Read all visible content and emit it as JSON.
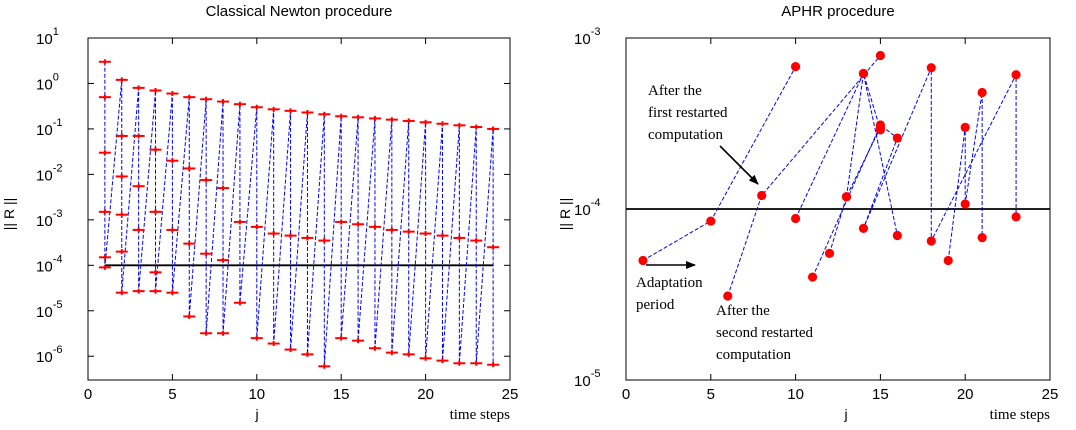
{
  "colors": {
    "marker": "#ff0000",
    "line": "#0000ff",
    "threshold": "#000000"
  },
  "chart_data": [
    {
      "type": "line",
      "title": "Classical Newton procedure",
      "xlabel": "j",
      "xlabel_right": "time steps",
      "ylabel": "|| R ||",
      "xlim": [
        0,
        25
      ],
      "ylim": [
        3e-07,
        10
      ],
      "yscale": "log",
      "xticks": [
        0,
        5,
        10,
        15,
        20,
        25
      ],
      "yticks": [
        {
          "base": "10",
          "exp": "1"
        },
        {
          "base": "10",
          "exp": "0"
        },
        {
          "base": "10",
          "exp": "-1"
        },
        {
          "base": "10",
          "exp": "-2"
        },
        {
          "base": "10",
          "exp": "-3"
        },
        {
          "base": "10",
          "exp": "-4"
        },
        {
          "base": "10",
          "exp": "-5"
        },
        {
          "base": "10",
          "exp": "-6"
        }
      ],
      "threshold": {
        "value": 0.0001,
        "x_range": [
          1,
          24
        ]
      },
      "marker": "plus",
      "series": [
        {
          "x": 1,
          "values": [
            3.0,
            0.5,
            0.03,
            0.0015,
            0.00015,
            9e-05
          ]
        },
        {
          "x": 2,
          "values": [
            1.2,
            0.07,
            0.009,
            0.0013,
            0.0002,
            2.5e-05
          ]
        },
        {
          "x": 3,
          "values": [
            0.8,
            0.07,
            0.0055,
            0.0006,
            2.7e-05
          ]
        },
        {
          "x": 4,
          "values": [
            0.7,
            0.035,
            0.0015,
            7e-05,
            2.7e-05
          ]
        },
        {
          "x": 5,
          "values": [
            0.6,
            0.02,
            0.0006,
            2.5e-05
          ]
        },
        {
          "x": 6,
          "values": [
            0.5,
            0.0135,
            0.0003,
            7.5e-06
          ]
        },
        {
          "x": 7,
          "values": [
            0.45,
            0.0075,
            0.00018,
            3.2e-06
          ]
        },
        {
          "x": 8,
          "values": [
            0.4,
            0.005,
            0.00013,
            3.2e-06
          ]
        },
        {
          "x": 9,
          "values": [
            0.35,
            0.0009,
            1.5e-05
          ]
        },
        {
          "x": 10,
          "values": [
            0.3,
            0.0007,
            2.5e-06
          ]
        },
        {
          "x": 11,
          "values": [
            0.27,
            0.0005,
            1.9e-06
          ]
        },
        {
          "x": 12,
          "values": [
            0.25,
            0.00045,
            1.4e-06
          ]
        },
        {
          "x": 13,
          "values": [
            0.23,
            0.0004,
            1.1e-06
          ]
        },
        {
          "x": 14,
          "values": [
            0.21,
            0.00035,
            6e-07
          ]
        },
        {
          "x": 15,
          "values": [
            0.19,
            0.0009,
            2.5e-06
          ]
        },
        {
          "x": 16,
          "values": [
            0.18,
            0.0008,
            2.2e-06
          ]
        },
        {
          "x": 17,
          "values": [
            0.17,
            0.0007,
            1.5e-06
          ]
        },
        {
          "x": 18,
          "values": [
            0.16,
            0.0006,
            1.2e-06
          ]
        },
        {
          "x": 19,
          "values": [
            0.15,
            0.00055,
            1.1e-06
          ]
        },
        {
          "x": 20,
          "values": [
            0.14,
            0.0005,
            9e-07
          ]
        },
        {
          "x": 21,
          "values": [
            0.13,
            0.00045,
            8e-07
          ]
        },
        {
          "x": 22,
          "values": [
            0.12,
            0.0004,
            7e-07
          ]
        },
        {
          "x": 23,
          "values": [
            0.11,
            0.00035,
            7e-07
          ]
        },
        {
          "x": 24,
          "values": [
            0.1,
            0.00025,
            6.5e-07
          ]
        }
      ]
    },
    {
      "type": "line",
      "title": "APHR procedure",
      "xlabel": "j",
      "xlabel_right": "time steps",
      "ylabel": "|| R ||",
      "xlim": [
        0,
        25
      ],
      "ylim": [
        1e-05,
        0.001
      ],
      "yscale": "log",
      "xticks": [
        0,
        5,
        10,
        15,
        20,
        25
      ],
      "yticks": [
        {
          "base": "10",
          "exp": "-3"
        },
        {
          "base": "10",
          "exp": "-4"
        },
        {
          "base": "10",
          "exp": "-5"
        }
      ],
      "threshold": {
        "value": 0.0001,
        "x_range": [
          0,
          25
        ]
      },
      "marker": "dot",
      "series": [
        {
          "points": [
            [
              1,
              5e-05
            ],
            [
              5,
              8.5e-05
            ],
            [
              10,
              0.00068
            ]
          ]
        },
        {
          "points": [
            [
              6,
              3.1e-05
            ],
            [
              8,
              0.00012
            ],
            [
              15,
              0.00079
            ]
          ]
        },
        {
          "points": [
            [
              10,
              8.8e-05
            ],
            [
              14,
              0.00062
            ],
            [
              15,
              0.00029
            ]
          ]
        },
        {
          "points": [
            [
              11,
              4e-05
            ],
            [
              15,
              0.00031
            ],
            [
              16,
              0.00026
            ],
            [
              14,
              7.7e-05
            ],
            [
              18,
              0.00067
            ],
            [
              18,
              6.5e-05
            ],
            [
              23,
              0.00061
            ],
            [
              23,
              9e-05
            ]
          ]
        },
        {
          "points": [
            [
              12,
              5.5e-05
            ],
            [
              13,
              0.000118
            ],
            [
              15,
              0.0003
            ]
          ]
        },
        {
          "points": [
            [
              13,
              0.000118
            ],
            [
              14,
              0.00062
            ],
            [
              16,
              7e-05
            ]
          ]
        },
        {
          "points": [
            [
              19,
              5e-05
            ],
            [
              20,
              0.0003
            ],
            [
              20,
              0.000107
            ],
            [
              21,
              0.00048
            ],
            [
              21,
              6.8e-05
            ]
          ]
        }
      ],
      "annotations": [
        {
          "lines": [
            "After the",
            "first restarted",
            "computation"
          ]
        },
        {
          "lines": [
            "Adaptation",
            "period"
          ]
        },
        {
          "lines": [
            "After the",
            "second restarted",
            "computation"
          ]
        }
      ]
    }
  ]
}
